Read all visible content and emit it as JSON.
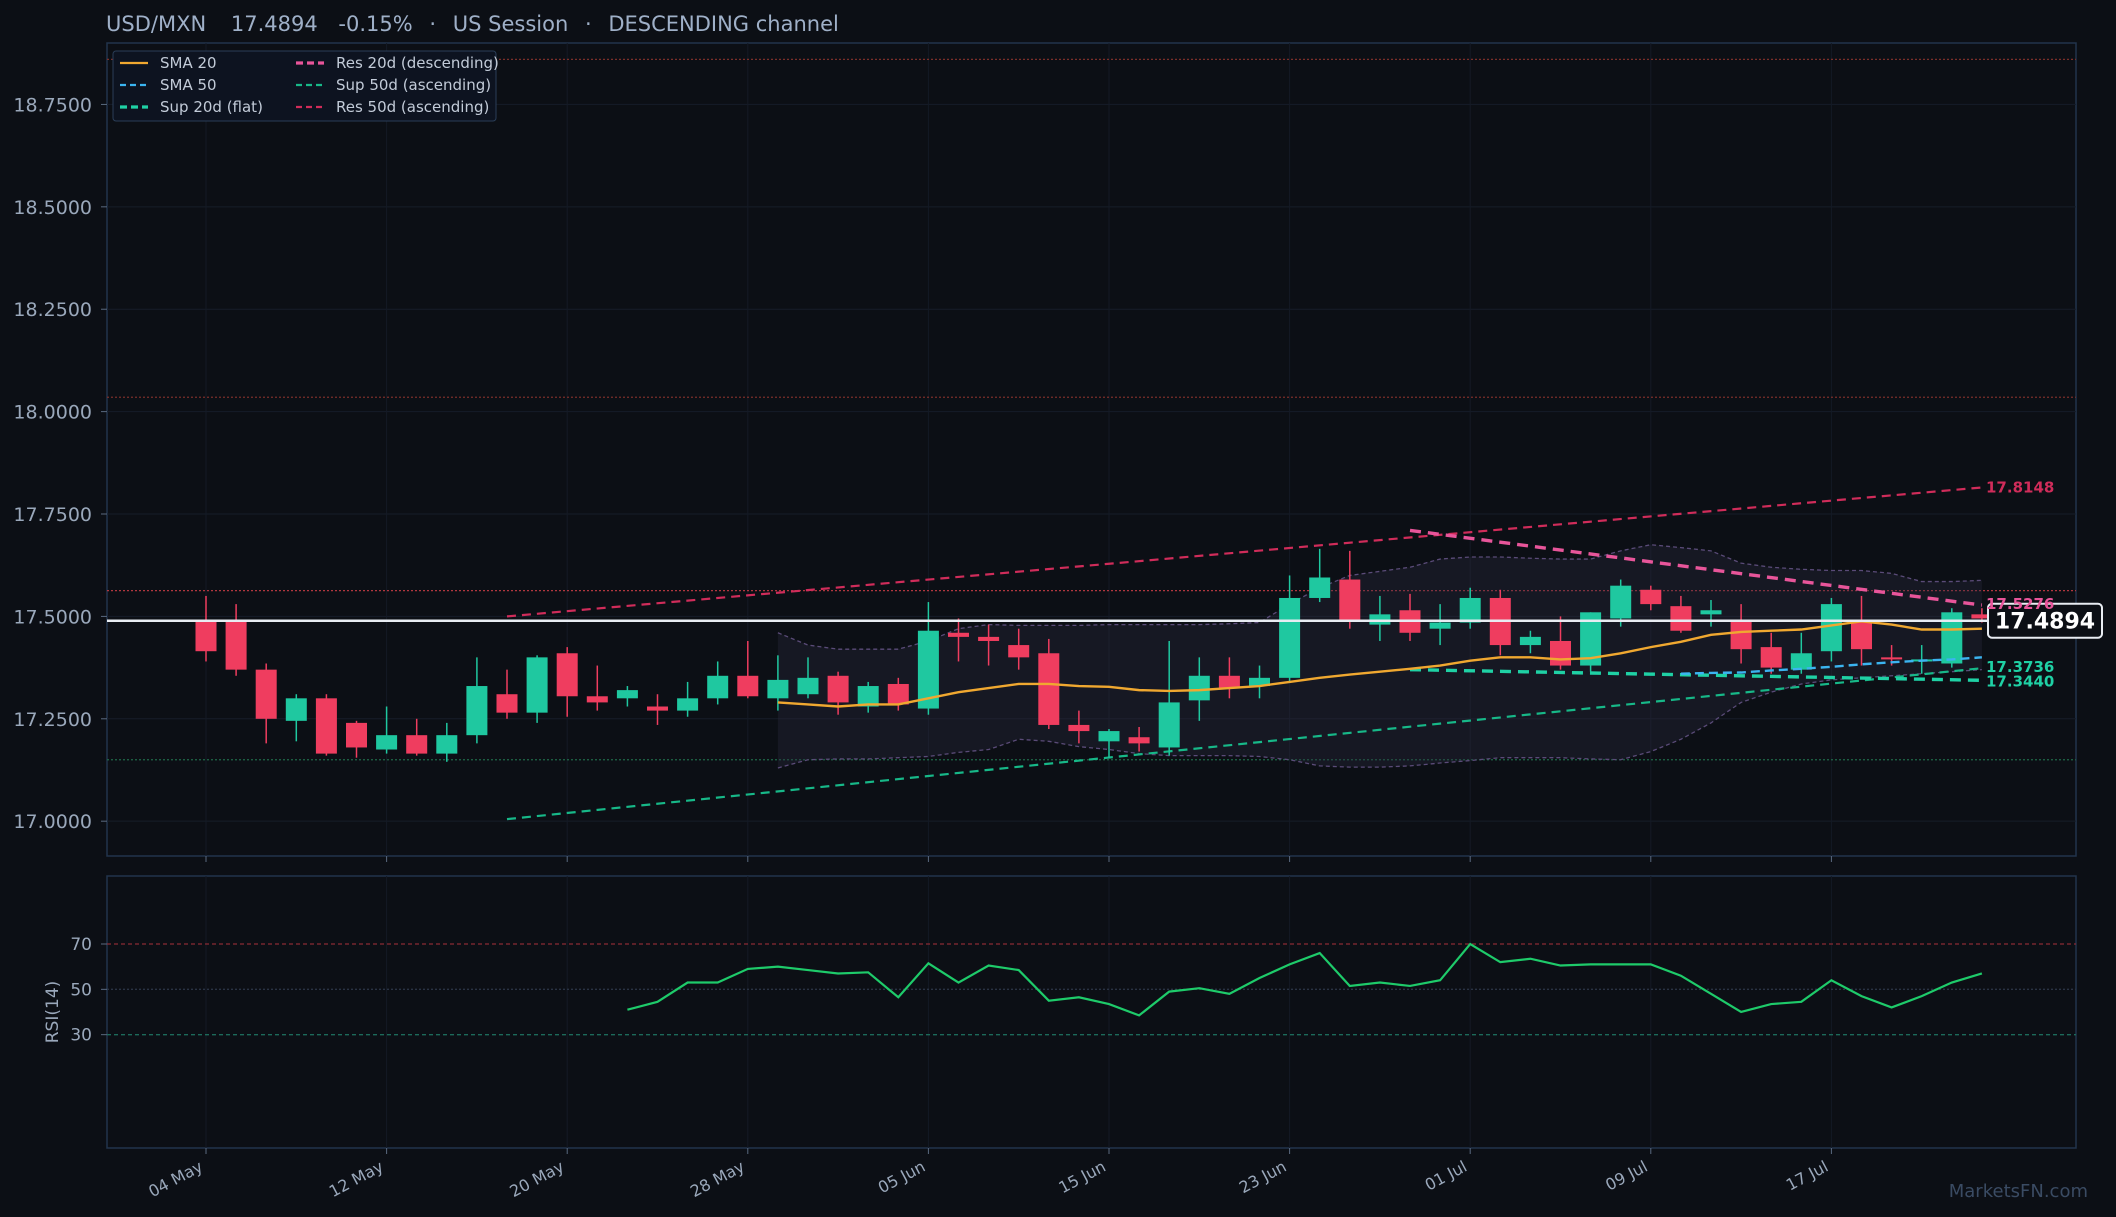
{
  "header": {
    "symbol": "USD/MXN",
    "price": "17.4894",
    "change": "-0.15%",
    "session": "US Session",
    "channel": "DESCENDING channel"
  },
  "legend": [
    {
      "label": "SMA 20",
      "color": "#f0a830",
      "style": "solid"
    },
    {
      "label": "SMA 50",
      "color": "#3bb4f0",
      "style": "dash"
    },
    {
      "label": "Sup 20d (flat)",
      "color": "#1fd1a5",
      "style": "dash-thick"
    },
    {
      "label": "Res 20d (descending)",
      "color": "#e8559a",
      "style": "dash-thick"
    },
    {
      "label": "Sup 50d (ascending)",
      "color": "#17b888",
      "style": "dash"
    },
    {
      "label": "Res 50d (ascending)",
      "color": "#d02c5a",
      "style": "dash"
    }
  ],
  "colors": {
    "up": "#1fc8a0",
    "down": "#ef3d5f",
    "sma20": "#f0a830",
    "sma50": "#3bb4f0",
    "rsi": "#1ecb6a",
    "res50": "#d02c5a",
    "sup50": "#17b888",
    "res20": "#e8559a",
    "sup20": "#1fd1a5"
  },
  "chart_data": {
    "type": "candlestick",
    "y_ticks": [
      "17.0000",
      "17.2500",
      "17.5000",
      "17.7500",
      "18.0000",
      "18.2500",
      "18.5000",
      "18.7500"
    ],
    "ylim": [
      16.915,
      18.9
    ],
    "x_ticks": [
      {
        "label": "04 May",
        "i": 0
      },
      {
        "label": "12 May",
        "i": 6
      },
      {
        "label": "20 May",
        "i": 12
      },
      {
        "label": "28 May",
        "i": 18
      },
      {
        "label": "05 Jun",
        "i": 24
      },
      {
        "label": "15 Jun",
        "i": 30
      },
      {
        "label": "23 Jun",
        "i": 36
      },
      {
        "label": "01 Jul",
        "i": 42
      },
      {
        "label": "09 Jul",
        "i": 48
      },
      {
        "label": "17 Jul",
        "i": 54
      }
    ],
    "candles": [
      [
        17.49,
        17.55,
        17.39,
        17.415
      ],
      [
        17.49,
        17.53,
        17.355,
        17.37
      ],
      [
        17.37,
        17.385,
        17.19,
        17.25
      ],
      [
        17.245,
        17.31,
        17.195,
        17.3
      ],
      [
        17.3,
        17.31,
        17.16,
        17.165
      ],
      [
        17.24,
        17.245,
        17.155,
        17.18
      ],
      [
        17.175,
        17.28,
        17.165,
        17.21
      ],
      [
        17.21,
        17.25,
        17.16,
        17.165
      ],
      [
        17.165,
        17.24,
        17.145,
        17.21
      ],
      [
        17.21,
        17.4,
        17.19,
        17.33
      ],
      [
        17.31,
        17.37,
        17.25,
        17.265
      ],
      [
        17.265,
        17.405,
        17.24,
        17.4
      ],
      [
        17.41,
        17.425,
        17.255,
        17.305
      ],
      [
        17.305,
        17.38,
        17.27,
        17.29
      ],
      [
        17.3,
        17.33,
        17.28,
        17.32
      ],
      [
        17.28,
        17.31,
        17.235,
        17.27
      ],
      [
        17.27,
        17.34,
        17.255,
        17.3
      ],
      [
        17.3,
        17.39,
        17.285,
        17.355
      ],
      [
        17.355,
        17.44,
        17.3,
        17.305
      ],
      [
        17.3,
        17.405,
        17.27,
        17.345
      ],
      [
        17.31,
        17.4,
        17.3,
        17.35
      ],
      [
        17.355,
        17.365,
        17.26,
        17.29
      ],
      [
        17.28,
        17.34,
        17.265,
        17.33
      ],
      [
        17.335,
        17.35,
        17.27,
        17.285
      ],
      [
        17.275,
        17.535,
        17.26,
        17.465
      ],
      [
        17.46,
        17.495,
        17.39,
        17.45
      ],
      [
        17.45,
        17.48,
        17.38,
        17.44
      ],
      [
        17.43,
        17.47,
        17.37,
        17.4
      ],
      [
        17.41,
        17.445,
        17.225,
        17.235
      ],
      [
        17.235,
        17.27,
        17.19,
        17.22
      ],
      [
        17.195,
        17.225,
        17.155,
        17.22
      ],
      [
        17.205,
        17.23,
        17.17,
        17.19
      ],
      [
        17.18,
        17.44,
        17.16,
        17.29
      ],
      [
        17.295,
        17.4,
        17.245,
        17.355
      ],
      [
        17.355,
        17.4,
        17.3,
        17.325
      ],
      [
        17.33,
        17.38,
        17.3,
        17.35
      ],
      [
        17.35,
        17.6,
        17.34,
        17.545
      ],
      [
        17.545,
        17.665,
        17.535,
        17.595
      ],
      [
        17.59,
        17.66,
        17.47,
        17.49
      ],
      [
        17.48,
        17.55,
        17.44,
        17.505
      ],
      [
        17.515,
        17.555,
        17.44,
        17.46
      ],
      [
        17.47,
        17.53,
        17.43,
        17.485
      ],
      [
        17.485,
        17.57,
        17.47,
        17.545
      ],
      [
        17.545,
        17.565,
        17.405,
        17.43
      ],
      [
        17.43,
        17.465,
        17.41,
        17.45
      ],
      [
        17.44,
        17.5,
        17.37,
        17.38
      ],
      [
        17.38,
        17.51,
        17.365,
        17.51
      ],
      [
        17.495,
        17.59,
        17.475,
        17.575
      ],
      [
        17.565,
        17.575,
        17.515,
        17.53
      ],
      [
        17.525,
        17.55,
        17.46,
        17.465
      ],
      [
        17.505,
        17.54,
        17.475,
        17.515
      ],
      [
        17.49,
        17.53,
        17.385,
        17.42
      ],
      [
        17.425,
        17.46,
        17.36,
        17.375
      ],
      [
        17.37,
        17.46,
        17.36,
        17.41
      ],
      [
        17.415,
        17.545,
        17.39,
        17.53
      ],
      [
        17.49,
        17.55,
        17.38,
        17.42
      ],
      [
        17.4,
        17.43,
        17.38,
        17.395
      ],
      [
        17.39,
        17.43,
        17.36,
        17.395
      ],
      [
        17.385,
        17.52,
        17.375,
        17.51
      ],
      [
        17.505,
        17.52,
        17.485,
        17.495
      ]
    ],
    "sma20": [
      [
        19,
        17.29
      ],
      [
        20,
        17.285
      ],
      [
        21,
        17.28
      ],
      [
        22,
        17.285
      ],
      [
        23,
        17.285
      ],
      [
        24,
        17.3
      ],
      [
        25,
        17.315
      ],
      [
        26,
        17.325
      ],
      [
        27,
        17.335
      ],
      [
        28,
        17.335
      ],
      [
        29,
        17.33
      ],
      [
        30,
        17.328
      ],
      [
        31,
        17.32
      ],
      [
        32,
        17.318
      ],
      [
        33,
        17.32
      ],
      [
        34,
        17.325
      ],
      [
        35,
        17.33
      ],
      [
        36,
        17.34
      ],
      [
        37,
        17.35
      ],
      [
        38,
        17.358
      ],
      [
        39,
        17.365
      ],
      [
        40,
        17.372
      ],
      [
        41,
        17.38
      ],
      [
        42,
        17.392
      ],
      [
        43,
        17.4
      ],
      [
        44,
        17.4
      ],
      [
        45,
        17.395
      ],
      [
        46,
        17.398
      ],
      [
        47,
        17.41
      ],
      [
        48,
        17.425
      ],
      [
        49,
        17.438
      ],
      [
        50,
        17.455
      ],
      [
        51,
        17.462
      ],
      [
        52,
        17.465
      ],
      [
        53,
        17.468
      ],
      [
        54,
        17.478
      ],
      [
        55,
        17.488
      ],
      [
        56,
        17.48
      ],
      [
        57,
        17.468
      ],
      [
        58,
        17.468
      ],
      [
        59,
        17.47
      ]
    ],
    "sma50": [
      [
        49,
        17.36
      ],
      [
        50,
        17.362
      ],
      [
        51,
        17.363
      ],
      [
        52,
        17.368
      ],
      [
        53,
        17.372
      ],
      [
        54,
        17.377
      ],
      [
        55,
        17.383
      ],
      [
        56,
        17.388
      ],
      [
        57,
        17.392
      ],
      [
        58,
        17.395
      ],
      [
        59,
        17.4
      ]
    ],
    "bb_upper": [
      [
        19,
        17.46
      ],
      [
        20,
        17.43
      ],
      [
        21,
        17.42
      ],
      [
        22,
        17.42
      ],
      [
        23,
        17.42
      ],
      [
        24,
        17.44
      ],
      [
        25,
        17.47
      ],
      [
        26,
        17.48
      ],
      [
        27,
        17.478
      ],
      [
        28,
        17.478
      ],
      [
        29,
        17.478
      ],
      [
        30,
        17.48
      ],
      [
        31,
        17.48
      ],
      [
        32,
        17.48
      ],
      [
        33,
        17.48
      ],
      [
        34,
        17.482
      ],
      [
        35,
        17.485
      ],
      [
        36,
        17.53
      ],
      [
        37,
        17.57
      ],
      [
        38,
        17.6
      ],
      [
        39,
        17.61
      ],
      [
        40,
        17.62
      ],
      [
        41,
        17.64
      ],
      [
        42,
        17.645
      ],
      [
        43,
        17.645
      ],
      [
        44,
        17.642
      ],
      [
        45,
        17.64
      ],
      [
        46,
        17.64
      ],
      [
        47,
        17.66
      ],
      [
        48,
        17.675
      ],
      [
        49,
        17.668
      ],
      [
        50,
        17.66
      ],
      [
        51,
        17.63
      ],
      [
        52,
        17.62
      ],
      [
        53,
        17.615
      ],
      [
        54,
        17.612
      ],
      [
        55,
        17.612
      ],
      [
        56,
        17.605
      ],
      [
        57,
        17.585
      ],
      [
        58,
        17.585
      ],
      [
        59,
        17.588
      ]
    ],
    "bb_lower": [
      [
        19,
        17.13
      ],
      [
        20,
        17.15
      ],
      [
        21,
        17.152
      ],
      [
        22,
        17.152
      ],
      [
        23,
        17.155
      ],
      [
        24,
        17.158
      ],
      [
        25,
        17.168
      ],
      [
        26,
        17.175
      ],
      [
        27,
        17.2
      ],
      [
        28,
        17.195
      ],
      [
        29,
        17.182
      ],
      [
        30,
        17.175
      ],
      [
        31,
        17.165
      ],
      [
        32,
        17.16
      ],
      [
        33,
        17.16
      ],
      [
        34,
        17.16
      ],
      [
        35,
        17.158
      ],
      [
        36,
        17.15
      ],
      [
        37,
        17.135
      ],
      [
        38,
        17.132
      ],
      [
        39,
        17.132
      ],
      [
        40,
        17.135
      ],
      [
        41,
        17.142
      ],
      [
        42,
        17.148
      ],
      [
        43,
        17.155
      ],
      [
        44,
        17.155
      ],
      [
        45,
        17.155
      ],
      [
        46,
        17.152
      ],
      [
        47,
        17.15
      ],
      [
        48,
        17.17
      ],
      [
        49,
        17.2
      ],
      [
        50,
        17.24
      ],
      [
        51,
        17.29
      ],
      [
        52,
        17.315
      ],
      [
        53,
        17.335
      ],
      [
        54,
        17.345
      ],
      [
        55,
        17.35
      ],
      [
        56,
        17.355
      ],
      [
        57,
        17.36
      ],
      [
        58,
        17.365
      ],
      [
        59,
        17.37
      ]
    ],
    "res50": {
      "from": [
        10,
        17.5
      ],
      "to": [
        59,
        17.8148
      ],
      "label": "17.8148"
    },
    "sup50": {
      "from": [
        10,
        17.005
      ],
      "to": [
        59,
        17.3736
      ],
      "label": "17.3736"
    },
    "res20": {
      "from": [
        40,
        17.71
      ],
      "to": [
        59,
        17.5276
      ],
      "label": "17.5276"
    },
    "sup20": {
      "from": [
        40,
        17.37
      ],
      "to": [
        59,
        17.344
      ],
      "label": "17.3440"
    },
    "h_levels": [
      {
        "value": 18.86,
        "color": "#7a2f2a"
      },
      {
        "value": 18.035,
        "color": "#7a2f2a"
      },
      {
        "value": 17.563,
        "color": "#b0373f"
      },
      {
        "value": 17.15,
        "color": "#1f6a48"
      }
    ],
    "last_price": 17.4894,
    "last_price_label": "17.4894",
    "rsi": {
      "label": "RSI(14)",
      "ticks": [
        "30",
        "50",
        "70"
      ],
      "ylim": [
        -20,
        100
      ],
      "values": [
        [
          14,
          41
        ],
        [
          15,
          44.5
        ],
        [
          16,
          53
        ],
        [
          17,
          53
        ],
        [
          18,
          59
        ],
        [
          19,
          60
        ],
        [
          20,
          58.5
        ],
        [
          21,
          57
        ],
        [
          22,
          57.5
        ],
        [
          23,
          46.5
        ],
        [
          24,
          61.5
        ],
        [
          25,
          53
        ],
        [
          26,
          60.5
        ],
        [
          27,
          58.5
        ],
        [
          28,
          45
        ],
        [
          29,
          46.5
        ],
        [
          30,
          43.5
        ],
        [
          31,
          38.5
        ],
        [
          32,
          49
        ],
        [
          33,
          50.5
        ],
        [
          34,
          48
        ],
        [
          35,
          55
        ],
        [
          36,
          61
        ],
        [
          37,
          66
        ],
        [
          38,
          51.5
        ],
        [
          39,
          53
        ],
        [
          40,
          51.5
        ],
        [
          41,
          54
        ],
        [
          42,
          70
        ],
        [
          43,
          62
        ],
        [
          44,
          63.5
        ],
        [
          45,
          60.5
        ],
        [
          46,
          61
        ],
        [
          47,
          61
        ],
        [
          48,
          61
        ],
        [
          49,
          56
        ],
        [
          50,
          48
        ],
        [
          51,
          40
        ],
        [
          52,
          43.5
        ],
        [
          53,
          44.5
        ],
        [
          54,
          54
        ],
        [
          55,
          47
        ],
        [
          56,
          42
        ],
        [
          57,
          47
        ],
        [
          58,
          53
        ],
        [
          59,
          57
        ]
      ]
    }
  },
  "brand": "MarketsFN.com"
}
